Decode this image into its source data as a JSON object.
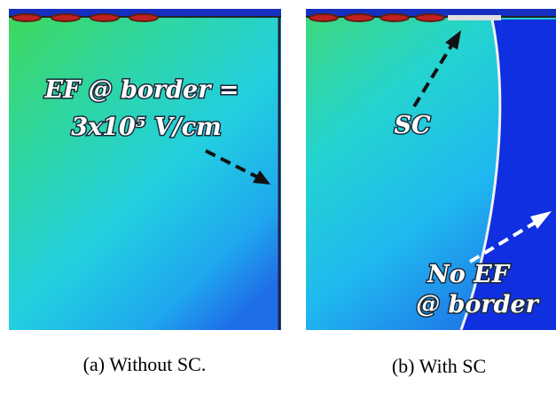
{
  "panels": [
    {
      "annotations": [
        "EF @ border =",
        "3x10⁵ V/cm"
      ],
      "caption": "(a)  Without SC."
    },
    {
      "annotations": [
        "SC",
        "No EF",
        "@ border"
      ],
      "caption": "(b) With SC"
    }
  ]
}
